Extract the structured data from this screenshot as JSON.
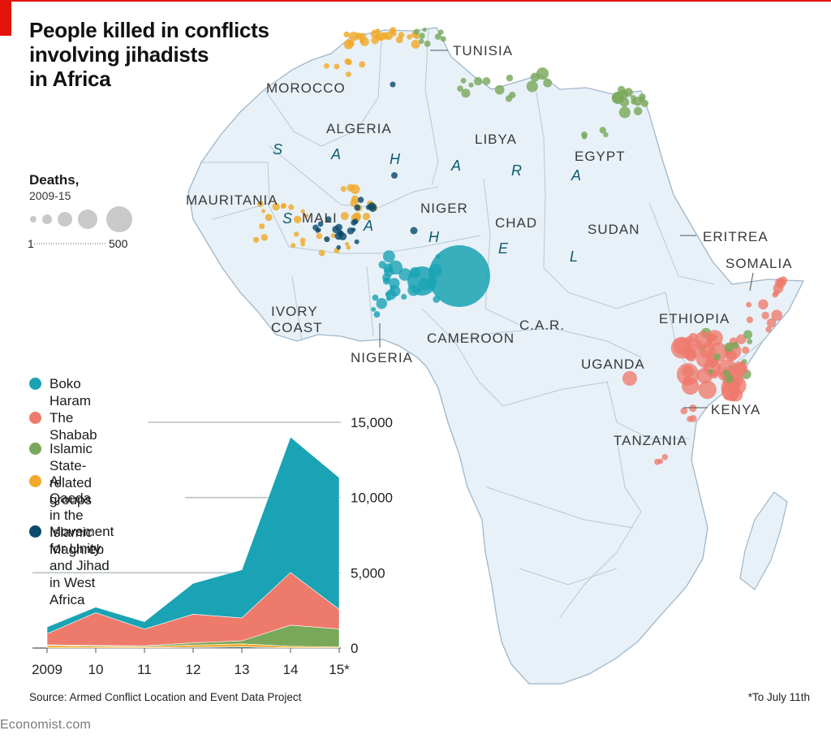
{
  "title": "People killed in conflicts\ninvolving jihadists\nin Africa",
  "size_legend": {
    "title": "Deaths,",
    "subtitle": "2009-15",
    "min_label": "1",
    "max_label": "500"
  },
  "groups": [
    {
      "key": "boko",
      "name": "Boko Haram",
      "color": "#1aa3b4"
    },
    {
      "key": "shabab",
      "name": "The Shabab",
      "color": "#ee7a6b"
    },
    {
      "key": "is",
      "name": "Islamic State-related groups",
      "color": "#7aa85a"
    },
    {
      "key": "aqim",
      "name": "Al Qaeda in the\nIslamic Maghreb",
      "color": "#f0a92a"
    },
    {
      "key": "mujao",
      "name": "Movement for Unity\nand Jihad in West Africa",
      "color": "#0c4a6e"
    }
  ],
  "map_labels": {
    "countries": [
      "MOROCCO",
      "ALGERIA",
      "LIBYA",
      "EGYPT",
      "TUNISIA",
      "MAURITANIA",
      "MALI",
      "NIGER",
      "CHAD",
      "SUDAN",
      "ERITREA",
      "SOMALIA",
      "ETHIOPIA",
      "IVORY\nCOAST",
      "NIGERIA",
      "CAMEROON",
      "C.A.R.",
      "UGANDA",
      "KENYA",
      "TANZANIA"
    ],
    "region_letters": [
      "S",
      "A",
      "H",
      "A",
      "R",
      "A",
      "S",
      "A",
      "H",
      "E",
      "L"
    ]
  },
  "chart_data": {
    "type": "area",
    "stacked": true,
    "categories": [
      "2009",
      "10",
      "11",
      "12",
      "13",
      "14",
      "15*"
    ],
    "series": [
      {
        "name": "Movement for Unity and Jihad in West Africa",
        "values": [
          20,
          20,
          20,
          50,
          80,
          20,
          20
        ]
      },
      {
        "name": "Al Qaeda in the Islamic Maghreb",
        "values": [
          150,
          100,
          80,
          150,
          200,
          100,
          50
        ]
      },
      {
        "name": "Islamic State-related groups",
        "values": [
          50,
          50,
          50,
          150,
          200,
          1400,
          1200
        ]
      },
      {
        "name": "The Shabab",
        "values": [
          730,
          2180,
          1110,
          1900,
          1520,
          3500,
          1300
        ]
      },
      {
        "name": "Boko Haram",
        "values": [
          450,
          370,
          490,
          2050,
          3200,
          9000,
          8750
        ]
      }
    ],
    "y_ticks": [
      0,
      5000,
      10000,
      15000
    ],
    "y_tick_labels": [
      "0",
      "5,000",
      "10,000",
      "15,000"
    ],
    "ylim": [
      0,
      16000
    ],
    "footnote": "*To July 11th"
  },
  "source": "Source: Armed Conflict Location and Event Data Project",
  "brand": "Economist.com"
}
